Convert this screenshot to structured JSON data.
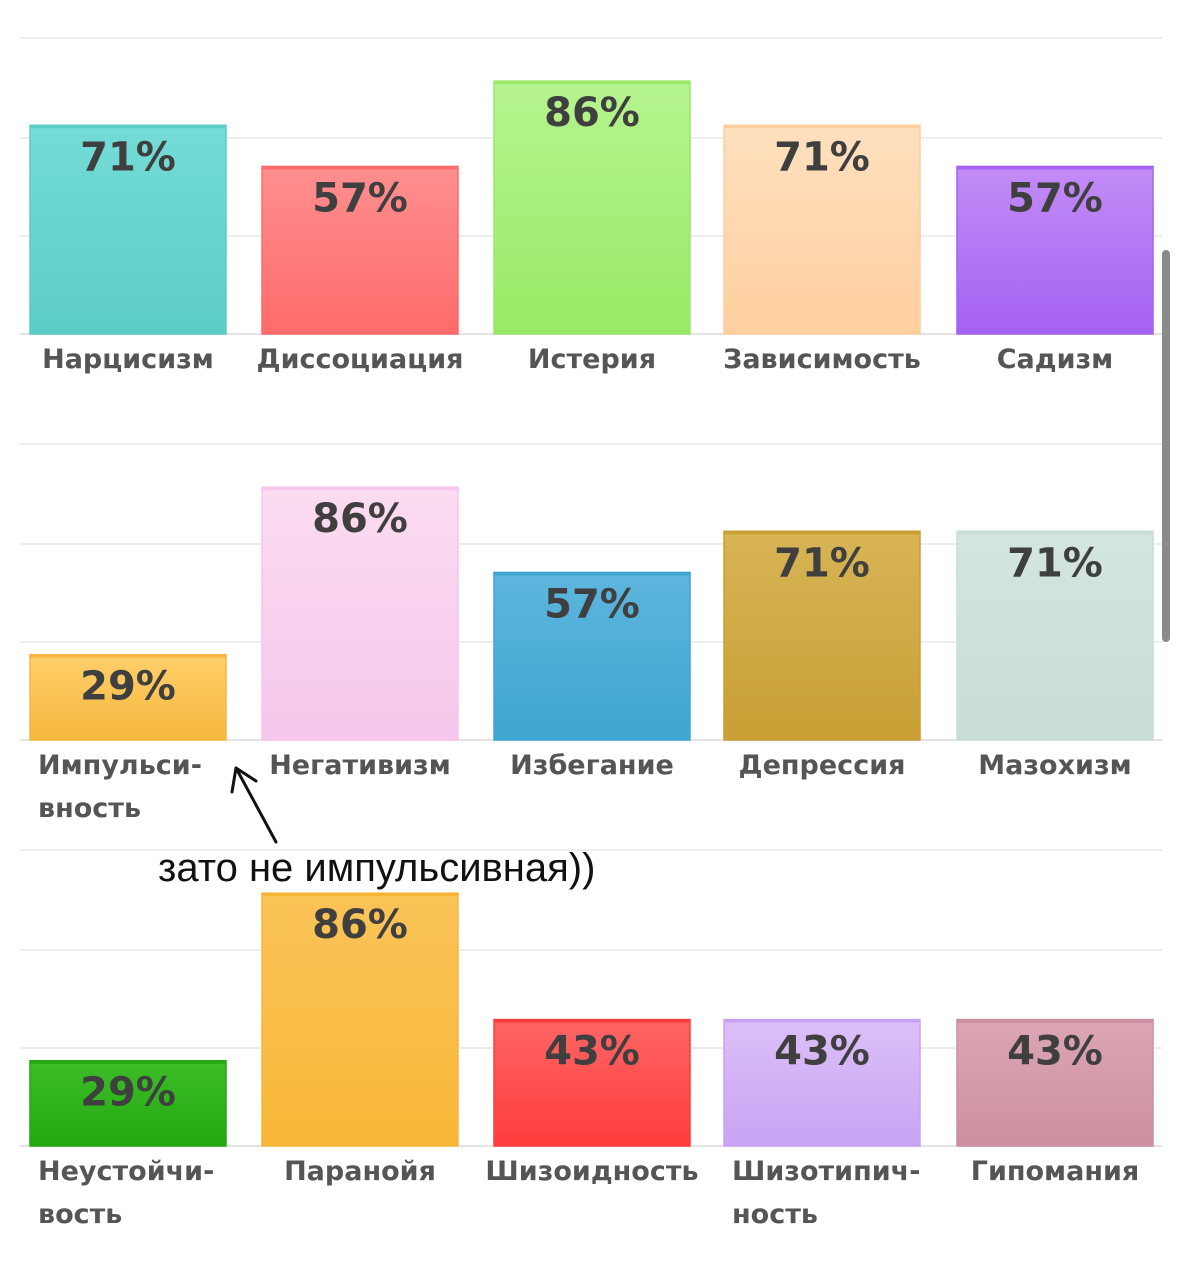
{
  "chart_data": [
    {
      "type": "bar",
      "categories": [
        [
          "Нарцисизм"
        ],
        [
          "Диссоциация"
        ],
        [
          "Истерия"
        ],
        [
          "Зависимость"
        ],
        [
          "Садизм"
        ]
      ],
      "values": [
        71,
        57,
        86,
        71,
        57
      ],
      "value_labels": [
        "71%",
        "57%",
        "86%",
        "71%",
        "57%"
      ],
      "colors": [
        [
          "#74dcd6",
          "#5ccdc6"
        ],
        [
          "#ff8f8f",
          "#ff6b6b"
        ],
        [
          "#b6f48f",
          "#98ea66"
        ],
        [
          "#ffe0bf",
          "#ffcf9f"
        ],
        [
          "#c38cf6",
          "#a561f2"
        ]
      ],
      "ylim": [
        0,
        100
      ],
      "grid": true
    },
    {
      "type": "bar",
      "categories": [
        [
          "Импульси-",
          "вность"
        ],
        [
          "Негативизм"
        ],
        [
          "Избегание"
        ],
        [
          "Депрессия"
        ],
        [
          "Мазохизм"
        ]
      ],
      "values": [
        29,
        86,
        57,
        71,
        71
      ],
      "value_labels": [
        "29%",
        "86%",
        "57%",
        "71%",
        "71%"
      ],
      "colors": [
        [
          "#ffcf6a",
          "#f7b73e"
        ],
        [
          "#fbdcf0",
          "#f6c6ec"
        ],
        [
          "#5db6dd",
          "#3fa5d2"
        ],
        [
          "#d8b456",
          "#c99f34"
        ],
        [
          "#d4e6de",
          "#c8ded5"
        ]
      ],
      "ylim": [
        0,
        100
      ],
      "grid": true
    },
    {
      "type": "bar",
      "categories": [
        [
          "Неустойчи-",
          "вость"
        ],
        [
          "Паранойя"
        ],
        [
          "Шизоидность"
        ],
        [
          "Шизотипич-",
          "ность"
        ],
        [
          "Гипомания"
        ]
      ],
      "values": [
        29,
        86,
        43,
        43,
        43
      ],
      "value_labels": [
        "29%",
        "86%",
        "43%",
        "43%",
        "43%"
      ],
      "colors": [
        [
          "#3dbd28",
          "#23a810"
        ],
        [
          "#fbc458",
          "#f8b638"
        ],
        [
          "#ff6565",
          "#ff3c3c"
        ],
        [
          "#dcc0f8",
          "#c8a3f3"
        ],
        [
          "#dca6b4",
          "#cd8f9f"
        ]
      ],
      "ylim": [
        0,
        100
      ],
      "grid": true
    }
  ],
  "annotation": {
    "text": "зато не импульсивная))"
  }
}
